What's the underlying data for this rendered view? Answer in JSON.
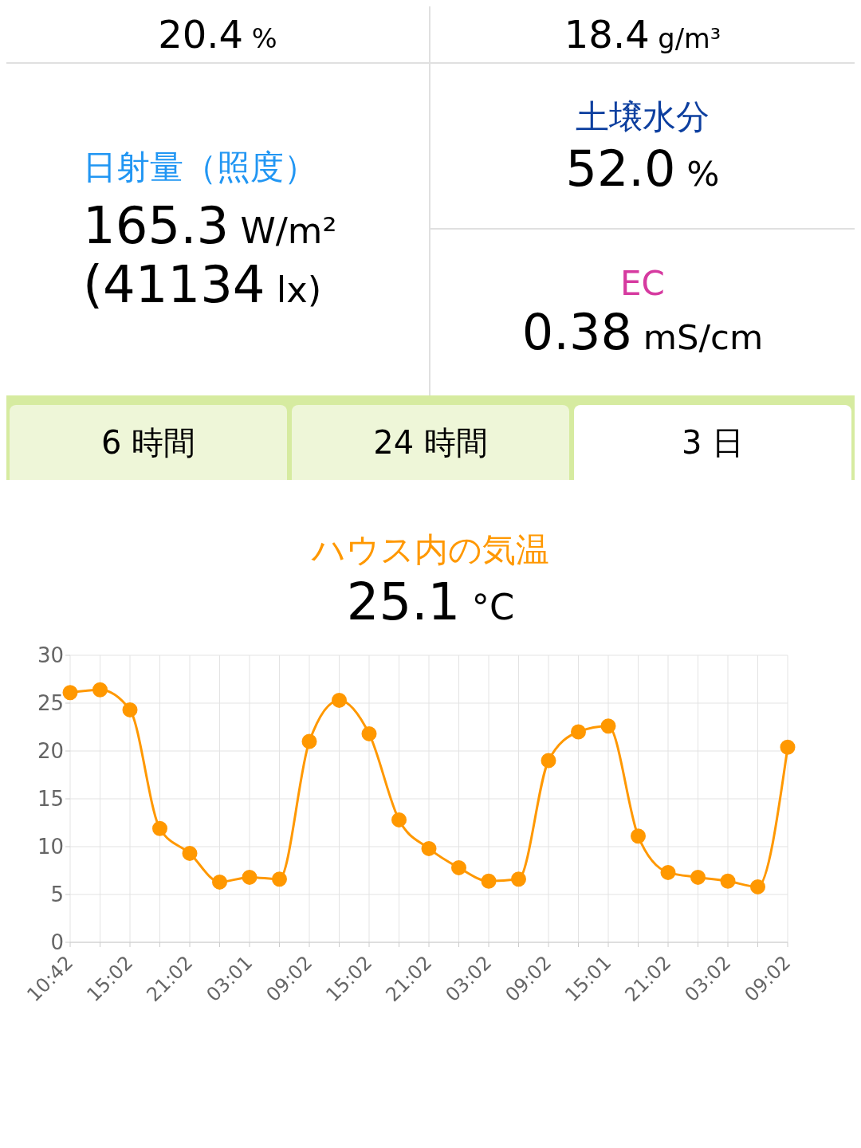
{
  "chart_data": [
    {
      "type": "other",
      "annotations": [
        "20.4 %",
        "18.4 g/m³",
        "日射量（照度）",
        "165.3 W/m²",
        "(41134 lx)",
        "土壌水分",
        "52.0 %",
        "EC",
        "0.38 mS/cm",
        "6 時間",
        "24 時間",
        "3 日"
      ]
    },
    {
      "type": "line",
      "title": "ハウス内の気温",
      "subtitle": "25.1 °C",
      "categories": [
        "10:42",
        null,
        "15:02",
        null,
        "21:02",
        null,
        "03:01",
        null,
        "09:02",
        null,
        "15:02",
        null,
        "21:02",
        null,
        "03:02",
        null,
        "09:02",
        null,
        "15:01",
        null,
        "21:02",
        null,
        "03:02",
        null,
        "09:02"
      ],
      "series": [
        {
          "color": "#ff9800",
          "values": [
            26.1,
            26.4,
            24.3,
            11.9,
            9.3,
            6.3,
            6.8,
            6.6,
            21.0,
            25.3,
            21.8,
            12.8,
            9.8,
            7.8,
            6.4,
            6.6,
            19.0,
            22.0,
            22.6,
            11.1,
            7.3,
            6.8,
            6.4,
            5.8,
            20.4
          ]
        }
      ],
      "ylim": [
        0,
        30
      ],
      "yticks": [
        0,
        5,
        10,
        15,
        20,
        25,
        30
      ],
      "grid": true,
      "marker": "circle"
    }
  ]
}
